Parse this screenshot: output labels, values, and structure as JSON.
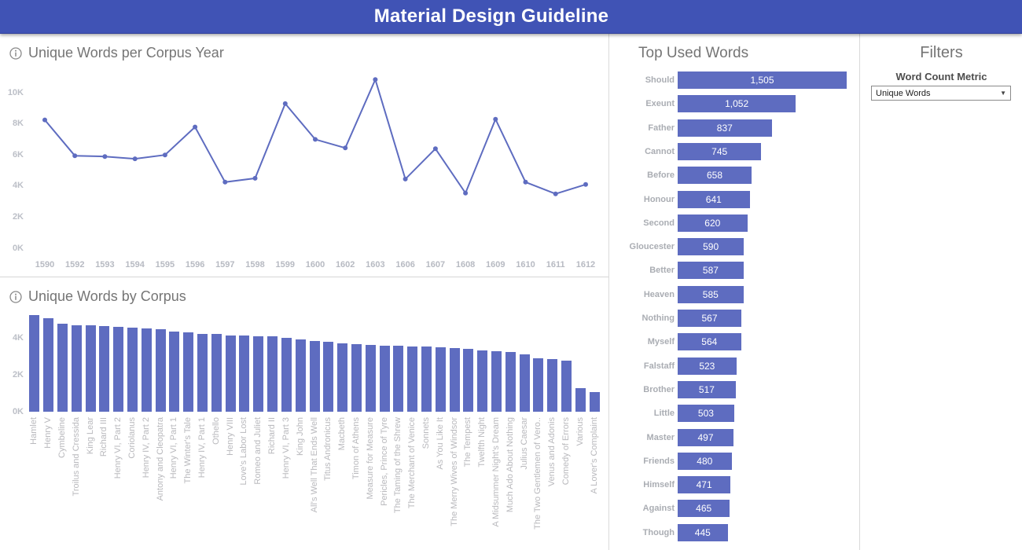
{
  "header": {
    "title": "Material Design Guideline"
  },
  "colors": {
    "header_bg": "#4053b5",
    "accent": "#5e6cc0",
    "divider": "#dadada",
    "panel_title": "#757575",
    "tick_text": "#b7bac2"
  },
  "icons": {
    "info": "info-icon",
    "dropdown_arrow": "chevron-down-icon"
  },
  "chart_data": [
    {
      "type": "line",
      "title": "Unique Words per Corpus Year",
      "xlabel": "",
      "ylabel": "",
      "x": [
        "1590",
        "1592",
        "1593",
        "1594",
        "1595",
        "1596",
        "1597",
        "1598",
        "1599",
        "1600",
        "1602",
        "1603",
        "1606",
        "1607",
        "1608",
        "1609",
        "1610",
        "1611",
        "1612"
      ],
      "values": [
        8250,
        5950,
        5900,
        5750,
        6000,
        7800,
        4250,
        4500,
        9300,
        7000,
        6450,
        10850,
        4450,
        6400,
        3550,
        8300,
        4250,
        3500,
        4100
      ],
      "y_ticks": [
        "0K",
        "2K",
        "4K",
        "6K",
        "8K",
        "10K"
      ],
      "ylim": [
        0,
        11000
      ],
      "grid": false,
      "legend": "none"
    },
    {
      "type": "bar",
      "title": "Unique Words by Corpus",
      "xlabel": "",
      "ylabel": "",
      "categories": [
        "Hamlet",
        "Henry V",
        "Cymbeline",
        "Troilus and Cressida",
        "King Lear",
        "Richard III",
        "Henry VI, Part 2",
        "Coriolanus",
        "Henry IV, Part 2",
        "Antony and Cleopatra",
        "Henry VI, Part 1",
        "The Winter's Tale",
        "Henry IV, Part 1",
        "Othello",
        "Henry VIII",
        "Love's Labor Lost",
        "Romeo and Juliet",
        "Richard II",
        "Henry VI, Part 3",
        "King John",
        "All's Well That Ends Well",
        "Titus Andronicus",
        "Macbeth",
        "Timon of Athens",
        "Measure for Measure",
        "Pericles, Prince of Tyre",
        "The Taming of the Shrew",
        "The Merchant of Venice",
        "Sonnets",
        "As You Like It",
        "The Merry Wives of Windsor",
        "The Tempest",
        "Twelfth Night",
        "A Midsummer Night's Dream",
        "Much Ado About Nothing",
        "Julius Caesar",
        "The Two Gentlemen of Vero..",
        "Venus and Adonis",
        "Comedy of Errors",
        "Various",
        "A Lover's Complaint"
      ],
      "values": [
        5250,
        5080,
        4800,
        4710,
        4700,
        4660,
        4620,
        4570,
        4520,
        4470,
        4370,
        4330,
        4250,
        4240,
        4160,
        4150,
        4120,
        4110,
        4000,
        3920,
        3860,
        3790,
        3720,
        3690,
        3650,
        3600,
        3580,
        3550,
        3540,
        3520,
        3470,
        3410,
        3330,
        3280,
        3250,
        3120,
        2910,
        2850,
        2780,
        1300,
        1080
      ],
      "y_ticks": [
        "0K",
        "2K",
        "4K"
      ],
      "ylim": [
        0,
        5500
      ],
      "grid": false,
      "legend": "none"
    },
    {
      "type": "bar-horizontal",
      "title": "Top Used Words",
      "max_value": 1505,
      "items": [
        {
          "word": "Should",
          "value": 1505,
          "display": "1,505"
        },
        {
          "word": "Exeunt",
          "value": 1052,
          "display": "1,052"
        },
        {
          "word": "Father",
          "value": 837,
          "display": "837"
        },
        {
          "word": "Cannot",
          "value": 745,
          "display": "745"
        },
        {
          "word": "Before",
          "value": 658,
          "display": "658"
        },
        {
          "word": "Honour",
          "value": 641,
          "display": "641"
        },
        {
          "word": "Second",
          "value": 620,
          "display": "620"
        },
        {
          "word": "Gloucester",
          "value": 590,
          "display": "590"
        },
        {
          "word": "Better",
          "value": 587,
          "display": "587"
        },
        {
          "word": "Heaven",
          "value": 585,
          "display": "585"
        },
        {
          "word": "Nothing",
          "value": 567,
          "display": "567"
        },
        {
          "word": "Myself",
          "value": 564,
          "display": "564"
        },
        {
          "word": "Falstaff",
          "value": 523,
          "display": "523"
        },
        {
          "word": "Brother",
          "value": 517,
          "display": "517"
        },
        {
          "word": "Little",
          "value": 503,
          "display": "503"
        },
        {
          "word": "Master",
          "value": 497,
          "display": "497"
        },
        {
          "word": "Friends",
          "value": 480,
          "display": "480"
        },
        {
          "word": "Himself",
          "value": 471,
          "display": "471"
        },
        {
          "word": "Against",
          "value": 465,
          "display": "465"
        },
        {
          "word": "Though",
          "value": 445,
          "display": "445"
        }
      ]
    }
  ],
  "filters": {
    "title": "Filters",
    "metric_label": "Word Count Metric",
    "dropdown_value": "Unique Words"
  }
}
